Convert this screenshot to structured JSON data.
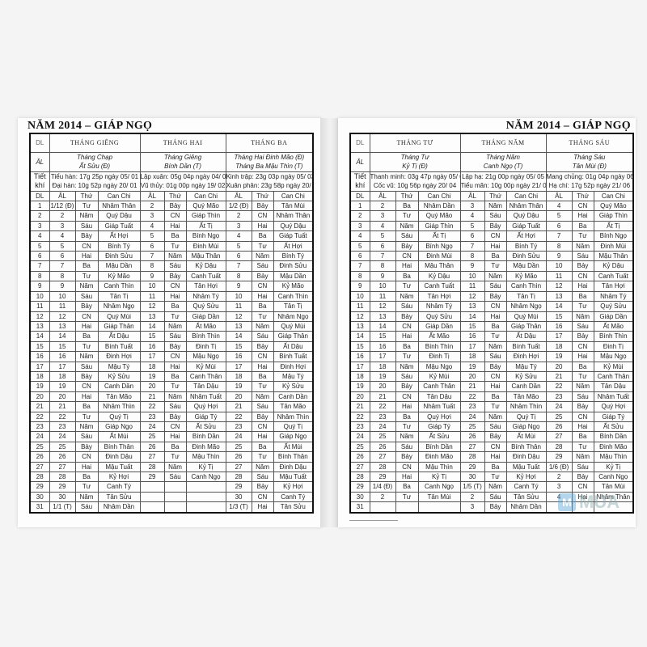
{
  "header": {
    "year_title": "NĂM 2014 – GIÁP NGỌ"
  },
  "labels": {
    "dl": "DL",
    "al": "ÂL",
    "tiet": "Tiết",
    "khi": "khí",
    "col_dl": "DL",
    "col_al": "ÂL",
    "col_thu": "Thứ",
    "col_canchi": "Can Chi"
  },
  "watermark": {
    "text": "MUA",
    "color": "#5aa8d8"
  },
  "pages": [
    {
      "months": [
        {
          "name": "THÁNG GIÊNG",
          "lunar_line1": "Tháng Chạp",
          "lunar_line2": "Ất Sửu (Đ)",
          "tiet_khi_1": "Tiểu hàn: 17g 25p ngày 05/ 01",
          "tiet_khi_2": "Đại hàn: 10g 52p ngày 20/ 01",
          "al": [
            "1/12 (Đ)",
            "2",
            "3",
            "4",
            "5",
            "6",
            "7",
            "8",
            "9",
            "10",
            "11",
            "12",
            "13",
            "14",
            "15",
            "16",
            "17",
            "18",
            "19",
            "20",
            "21",
            "22",
            "23",
            "24",
            "25",
            "26",
            "27",
            "28",
            "29",
            "30",
            "1/1 (T)"
          ],
          "thu": [
            "Tư",
            "Năm",
            "Sáu",
            "Bảy",
            "CN",
            "Hai",
            "Ba",
            "Tư",
            "Năm",
            "Sáu",
            "Bảy",
            "CN",
            "Hai",
            "Ba",
            "Tư",
            "Năm",
            "Sáu",
            "Bảy",
            "CN",
            "Hai",
            "Ba",
            "Tư",
            "Năm",
            "Sáu",
            "Bảy",
            "CN",
            "Hai",
            "Ba",
            "Tư",
            "Năm",
            "Sáu"
          ],
          "canchi": [
            "Nhâm Thân",
            "Quý Dậu",
            "Giáp Tuất",
            "Ất Hợi",
            "Bính Tý",
            "Đinh Sửu",
            "Mậu Dần",
            "Kỷ Mão",
            "Canh Thìn",
            "Tân Tị",
            "Nhâm Ngọ",
            "Quý Mùi",
            "Giáp Thân",
            "Ất Dậu",
            "Bính Tuất",
            "Đinh Hợi",
            "Mậu Tý",
            "Kỷ Sửu",
            "Canh Dần",
            "Tân Mão",
            "Nhâm Thìn",
            "Quý Tị",
            "Giáp Ngọ",
            "Ất Mùi",
            "Bính Thân",
            "Đinh Dậu",
            "Mậu Tuất",
            "Kỷ Hợi",
            "Canh Tý",
            "Tân Sửu",
            "Nhâm Dần"
          ]
        },
        {
          "name": "THÁNG HAI",
          "lunar_line1": "Tháng Giêng",
          "lunar_line2": "Bính Dần (T)",
          "tiet_khi_1": "Lập xuân: 05g 04p ngày 04/ 02",
          "tiet_khi_2": "Vũ thủy: 01g 00p ngày 19/ 02",
          "al": [
            "2",
            "3",
            "4",
            "5",
            "6",
            "7",
            "8",
            "9",
            "10",
            "11",
            "12",
            "13",
            "14",
            "15",
            "16",
            "17",
            "18",
            "19",
            "20",
            "21",
            "22",
            "23",
            "24",
            "25",
            "26",
            "27",
            "28",
            "29"
          ],
          "thu": [
            "Bảy",
            "CN",
            "Hai",
            "Ba",
            "Tư",
            "Năm",
            "Sáu",
            "Bảy",
            "CN",
            "Hai",
            "Ba",
            "Tư",
            "Năm",
            "Sáu",
            "Bảy",
            "CN",
            "Hai",
            "Ba",
            "Tư",
            "Năm",
            "Sáu",
            "Bảy",
            "CN",
            "Hai",
            "Ba",
            "Tư",
            "Năm",
            "Sáu"
          ],
          "canchi": [
            "Quý Mão",
            "Giáp Thìn",
            "Ất Tị",
            "Bính Ngọ",
            "Đinh Mùi",
            "Mậu Thân",
            "Kỷ Dậu",
            "Canh Tuất",
            "Tân Hợi",
            "Nhâm Tý",
            "Quý Sửu",
            "Giáp Dần",
            "Ất Mão",
            "Bính Thìn",
            "Đinh Tị",
            "Mậu Ngọ",
            "Kỷ Mùi",
            "Canh Thân",
            "Tân Dậu",
            "Nhâm Tuất",
            "Quý Hợi",
            "Giáp Tý",
            "Ất Sửu",
            "Bính Dần",
            "Đinh Mão",
            "Mậu Thìn",
            "Kỷ Tị",
            "Canh Ngọ"
          ]
        },
        {
          "name": "THÁNG BA",
          "lunar_line1": "Tháng Hai Đinh Mão (Đ)",
          "lunar_line2": "Tháng Ba Mậu Thìn (T)",
          "tiet_khi_1": "Kinh trập: 23g 03p ngày 05/ 03",
          "tiet_khi_2": "Xuân phân: 23g 58p ngày 20/ 03",
          "al": [
            "1/2 (Đ)",
            "2",
            "3",
            "4",
            "5",
            "6",
            "7",
            "8",
            "9",
            "10",
            "11",
            "12",
            "13",
            "14",
            "15",
            "16",
            "17",
            "18",
            "19",
            "20",
            "21",
            "22",
            "23",
            "24",
            "25",
            "26",
            "27",
            "28",
            "29",
            "30",
            "1/3 (T)"
          ],
          "thu": [
            "Bảy",
            "CN",
            "Hai",
            "Ba",
            "Tư",
            "Năm",
            "Sáu",
            "Bảy",
            "CN",
            "Hai",
            "Ba",
            "Tư",
            "Năm",
            "Sáu",
            "Bảy",
            "CN",
            "Hai",
            "Ba",
            "Tư",
            "Năm",
            "Sáu",
            "Bảy",
            "CN",
            "Hai",
            "Ba",
            "Tư",
            "Năm",
            "Sáu",
            "Bảy",
            "CN",
            "Hai"
          ],
          "canchi": [
            "Tân Mùi",
            "Nhâm Thân",
            "Quý Dậu",
            "Giáp Tuất",
            "Ất Hợi",
            "Bính Tý",
            "Đinh Sửu",
            "Mậu Dần",
            "Kỷ Mão",
            "Canh Thìn",
            "Tân Tị",
            "Nhâm Ngọ",
            "Quý Mùi",
            "Giáp Thân",
            "Ất Dậu",
            "Bính Tuất",
            "Đinh Hợi",
            "Mậu Tý",
            "Kỷ Sửu",
            "Canh Dần",
            "Tân Mão",
            "Nhâm Thìn",
            "Quý Tị",
            "Giáp Ngọ",
            "Ất Mùi",
            "Bính Thân",
            "Đinh Dậu",
            "Mậu Tuất",
            "Kỷ Hợi",
            "Canh Tý",
            "Tân Sửu"
          ]
        }
      ]
    },
    {
      "months": [
        {
          "name": "THÁNG TƯ",
          "lunar_line1": "Tháng Tư",
          "lunar_line2": "Kỷ Tị (Đ)",
          "tiet_khi_1": "Thanh minh: 03g 47p ngày 05/ 04",
          "tiet_khi_2": "Cốc vũ: 10g 56p ngày 20/ 04",
          "al": [
            "2",
            "3",
            "4",
            "5",
            "6",
            "7",
            "8",
            "9",
            "10",
            "11",
            "12",
            "13",
            "14",
            "15",
            "16",
            "17",
            "18",
            "19",
            "20",
            "21",
            "22",
            "23",
            "24",
            "25",
            "26",
            "27",
            "28",
            "29",
            "1/4 (Đ)",
            "2"
          ],
          "thu": [
            "Ba",
            "Tư",
            "Năm",
            "Sáu",
            "Bảy",
            "CN",
            "Hai",
            "Ba",
            "Tư",
            "Năm",
            "Sáu",
            "Bảy",
            "CN",
            "Hai",
            "Ba",
            "Tư",
            "Năm",
            "Sáu",
            "Bảy",
            "CN",
            "Hai",
            "Ba",
            "Tư",
            "Năm",
            "Sáu",
            "Bảy",
            "CN",
            "Hai",
            "Ba",
            "Tư"
          ],
          "canchi": [
            "Nhâm Dần",
            "Quý Mão",
            "Giáp Thìn",
            "Ất Tị",
            "Bính Ngọ",
            "Đinh Mùi",
            "Mậu Thân",
            "Kỷ Dậu",
            "Canh Tuất",
            "Tân Hợi",
            "Nhâm Tý",
            "Quý Sửu",
            "Giáp Dần",
            "Ất Mão",
            "Bính Thìn",
            "Đinh Tị",
            "Mậu Ngọ",
            "Kỷ Mùi",
            "Canh Thân",
            "Tân Dậu",
            "Nhâm Tuất",
            "Quý Hợi",
            "Giáp Tý",
            "Ất Sửu",
            "Bính Dần",
            "Đinh Mão",
            "Mậu Thìn",
            "Kỷ Tị",
            "Canh Ngọ",
            "Tân Mùi"
          ]
        },
        {
          "name": "THÁNG NĂM",
          "lunar_line1": "Tháng Năm",
          "lunar_line2": "Canh Ngọ (T)",
          "tiet_khi_1": "Lập hạ: 21g 00p ngày 05/ 05",
          "tiet_khi_2": "Tiểu mãn: 10g 00p ngày 21/ 05",
          "al": [
            "3",
            "4",
            "5",
            "6",
            "7",
            "8",
            "9",
            "10",
            "11",
            "12",
            "13",
            "14",
            "15",
            "16",
            "17",
            "18",
            "19",
            "20",
            "21",
            "22",
            "23",
            "24",
            "25",
            "26",
            "27",
            "28",
            "29",
            "30",
            "1/5 (T)",
            "2",
            "3"
          ],
          "thu": [
            "Năm",
            "Sáu",
            "Bảy",
            "CN",
            "Hai",
            "Ba",
            "Tư",
            "Năm",
            "Sáu",
            "Bảy",
            "CN",
            "Hai",
            "Ba",
            "Tư",
            "Năm",
            "Sáu",
            "Bảy",
            "CN",
            "Hai",
            "Ba",
            "Tư",
            "Năm",
            "Sáu",
            "Bảy",
            "CN",
            "Hai",
            "Ba",
            "Tư",
            "Năm",
            "Sáu",
            "Bảy"
          ],
          "canchi": [
            "Nhâm Thân",
            "Quý Dậu",
            "Giáp Tuất",
            "Ất Hợi",
            "Bính Tý",
            "Đinh Sửu",
            "Mậu Dần",
            "Kỷ Mão",
            "Canh Thìn",
            "Tân Tị",
            "Nhâm Ngọ",
            "Quý Mùi",
            "Giáp Thân",
            "Ất Dậu",
            "Bính Tuất",
            "Đinh Hợi",
            "Mậu Tý",
            "Kỷ Sửu",
            "Canh Dần",
            "Tân Mão",
            "Nhâm Thìn",
            "Quý Tị",
            "Giáp Ngọ",
            "Ất Mùi",
            "Bính Thân",
            "Đinh Dậu",
            "Mậu Tuất",
            "Kỷ Hợi",
            "Canh Tý",
            "Tân Sửu",
            "Nhâm Dần"
          ]
        },
        {
          "name": "THÁNG SÁU",
          "lunar_line1": "Tháng Sáu",
          "lunar_line2": "Tân Mùi (Đ)",
          "tiet_khi_1": "Mang chủng: 01g 04p ngày 06/ 06",
          "tiet_khi_2": "Hạ chí: 17g 52p ngày 21/ 06",
          "al": [
            "4",
            "5",
            "6",
            "7",
            "8",
            "9",
            "10",
            "11",
            "12",
            "13",
            "14",
            "15",
            "16",
            "17",
            "18",
            "19",
            "20",
            "21",
            "22",
            "23",
            "24",
            "25",
            "26",
            "27",
            "28",
            "29",
            "1/6 (Đ)",
            "2",
            "3",
            "4"
          ],
          "thu": [
            "CN",
            "Hai",
            "Ba",
            "Tư",
            "Năm",
            "Sáu",
            "Bảy",
            "CN",
            "Hai",
            "Ba",
            "Tư",
            "Năm",
            "Sáu",
            "Bảy",
            "CN",
            "Hai",
            "Ba",
            "Tư",
            "Năm",
            "Sáu",
            "Bảy",
            "CN",
            "Hai",
            "Ba",
            "Tư",
            "Năm",
            "Sáu",
            "Bảy",
            "CN",
            "Hai"
          ],
          "canchi": [
            "Quý Mão",
            "Giáp Thìn",
            "Ất Tị",
            "Bính Ngọ",
            "Đinh Mùi",
            "Mậu Thân",
            "Kỷ Dậu",
            "Canh Tuất",
            "Tân Hợi",
            "Nhâm Tý",
            "Quý Sửu",
            "Giáp Dần",
            "Ất Mão",
            "Bính Thìn",
            "Đinh Tị",
            "Mậu Ngọ",
            "Kỷ Mùi",
            "Canh Thân",
            "Tân Dậu",
            "Nhâm Tuất",
            "Quý Hợi",
            "Giáp Tý",
            "Ất Sửu",
            "Bính Dần",
            "Đinh Mão",
            "Mậu Thìn",
            "Kỷ Tị",
            "Canh Ngọ",
            "Tân Mùi",
            "Nhâm Thân"
          ]
        }
      ]
    }
  ],
  "dl_days": [
    "1",
    "2",
    "3",
    "4",
    "5",
    "6",
    "7",
    "8",
    "9",
    "10",
    "11",
    "12",
    "13",
    "14",
    "15",
    "16",
    "17",
    "18",
    "19",
    "20",
    "21",
    "22",
    "23",
    "24",
    "25",
    "26",
    "27",
    "28",
    "29",
    "30",
    "31"
  ]
}
